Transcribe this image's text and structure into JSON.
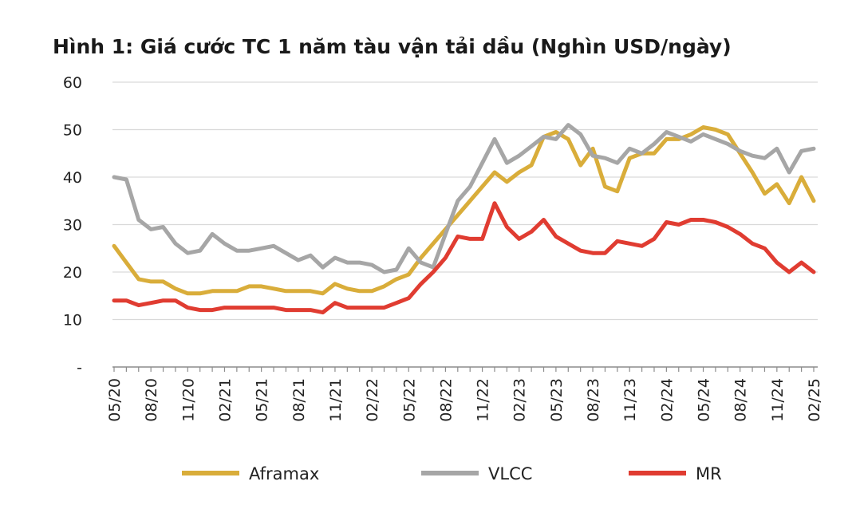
{
  "chart_data": {
    "type": "line",
    "title": "Hình 1: Giá cước TC 1 năm tàu vận tải dầu (Nghìn USD/ngày)",
    "ylim": [
      0,
      60
    ],
    "y_ticks": [
      "-",
      "10",
      "20",
      "30",
      "40",
      "50",
      "60"
    ],
    "grid": "horizontal",
    "legend_position": "bottom",
    "x_tick_labels": [
      "05/20",
      "08/20",
      "11/20",
      "02/21",
      "05/21",
      "08/21",
      "11/21",
      "02/22",
      "05/22",
      "08/22",
      "11/22",
      "02/23",
      "05/23",
      "08/23",
      "11/23",
      "02/24",
      "05/24",
      "08/24",
      "11/24",
      "02/25"
    ],
    "x": [
      "05/20",
      "06/20",
      "07/20",
      "08/20",
      "09/20",
      "10/20",
      "11/20",
      "12/20",
      "01/21",
      "02/21",
      "03/21",
      "04/21",
      "05/21",
      "06/21",
      "07/21",
      "08/21",
      "09/21",
      "10/21",
      "11/21",
      "12/21",
      "01/22",
      "02/22",
      "03/22",
      "04/22",
      "05/22",
      "06/22",
      "07/22",
      "08/22",
      "09/22",
      "10/22",
      "11/22",
      "12/22",
      "01/23",
      "02/23",
      "03/23",
      "04/23",
      "05/23",
      "06/23",
      "07/23",
      "08/23",
      "09/23",
      "10/23",
      "11/23",
      "12/23",
      "01/24",
      "02/24",
      "03/24",
      "04/24",
      "05/24",
      "06/24",
      "07/24",
      "08/24",
      "09/24",
      "10/24",
      "11/24",
      "12/24",
      "01/25",
      "02/25"
    ],
    "series": [
      {
        "name": "Aframax",
        "color": "#d9ad3a",
        "values": [
          25.5,
          22,
          18.5,
          18,
          18,
          16.5,
          15.5,
          15.5,
          16,
          16,
          16,
          17,
          17,
          16.5,
          16,
          16,
          16,
          15.5,
          17.5,
          16.5,
          16,
          16,
          17,
          18.5,
          19.5,
          23,
          26,
          29,
          32,
          35,
          38,
          41,
          39,
          41,
          42.5,
          48.5,
          49.5,
          48,
          42.5,
          46,
          38,
          37,
          44,
          45,
          45,
          48,
          48,
          49,
          50.5,
          50,
          49,
          45,
          41,
          36.5,
          38.5,
          34.5,
          40,
          35
        ]
      },
      {
        "name": "VLCC",
        "color": "#a6a6a6",
        "values": [
          40,
          39.5,
          31,
          29,
          29.5,
          26,
          24,
          24.5,
          28,
          26,
          24.5,
          24.5,
          25,
          25.5,
          24,
          22.5,
          23.5,
          21,
          23,
          22,
          22,
          21.5,
          20,
          20.5,
          25,
          22,
          21,
          28,
          35,
          38,
          43,
          48,
          43,
          44.5,
          46.5,
          48.5,
          48,
          51,
          49,
          44.5,
          44,
          43,
          46,
          45,
          47,
          49.5,
          48.5,
          47.5,
          49,
          48,
          47,
          45.5,
          44.5,
          44,
          46,
          41,
          45.5,
          46
        ]
      },
      {
        "name": "MR",
        "color": "#e03c31",
        "values": [
          14,
          14,
          13,
          13.5,
          14,
          14,
          12.5,
          12,
          12,
          12.5,
          12.5,
          12.5,
          12.5,
          12.5,
          12,
          12,
          12,
          11.5,
          13.5,
          12.5,
          12.5,
          12.5,
          12.5,
          13.5,
          14.5,
          17.5,
          20,
          23,
          27.5,
          27,
          27,
          34.5,
          29.5,
          27,
          28.5,
          31,
          27.5,
          26,
          24.5,
          24,
          24,
          26.5,
          26,
          25.5,
          27,
          30.5,
          30,
          31,
          31,
          30.5,
          29.5,
          28,
          26,
          25,
          22,
          20,
          22,
          20
        ]
      }
    ]
  }
}
